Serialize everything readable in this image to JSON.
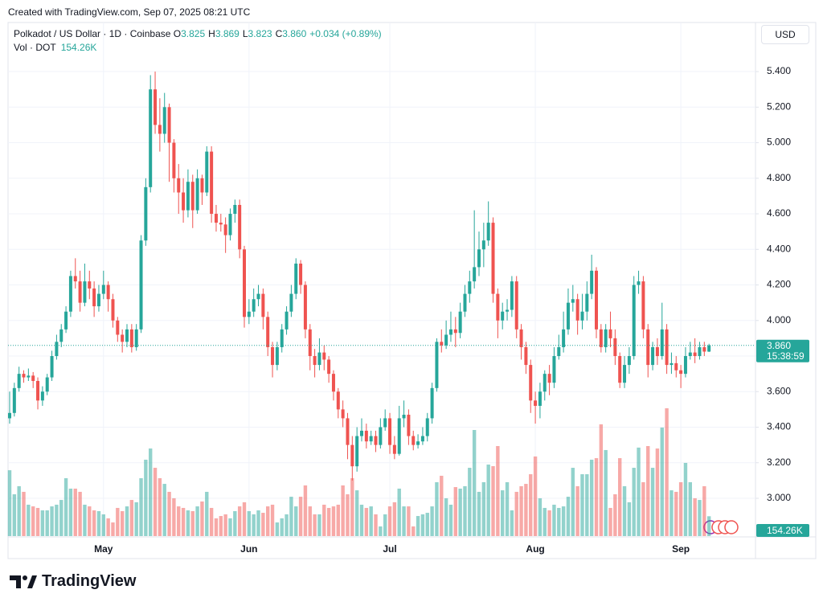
{
  "header": {
    "created": "Created with TradingView.com, Sep 07, 2025 08:21 UTC"
  },
  "chart_data": {
    "type": "candlestick",
    "title": "Polkadot / US Dollar · 1D · Coinbase",
    "ohlc_legend": [
      {
        "key": "O",
        "label": "3.825"
      },
      {
        "key": "H",
        "label": "3.869"
      },
      {
        "key": "L",
        "label": "3.823"
      },
      {
        "key": "C",
        "label": "3.860"
      }
    ],
    "change_label": "+0.034 (+0.89%)",
    "currency": "USD",
    "countdown": "15:38:59",
    "up_color": "#26a69a",
    "down_color": "#ef5350",
    "grid": true,
    "categories": [
      null,
      null,
      null,
      null,
      null,
      null,
      null,
      null,
      null,
      null,
      null,
      null,
      null,
      null,
      null,
      null,
      null,
      null,
      null,
      null,
      "May",
      null,
      null,
      null,
      null,
      null,
      null,
      null,
      null,
      null,
      null,
      null,
      null,
      null,
      null,
      null,
      null,
      null,
      null,
      null,
      null,
      null,
      null,
      null,
      null,
      null,
      null,
      null,
      null,
      null,
      null,
      "Jun",
      null,
      null,
      null,
      null,
      null,
      null,
      null,
      null,
      null,
      null,
      null,
      null,
      null,
      null,
      null,
      null,
      null,
      null,
      null,
      null,
      null,
      null,
      null,
      null,
      null,
      null,
      null,
      null,
      null,
      "Jul",
      null,
      null,
      null,
      null,
      null,
      null,
      null,
      null,
      null,
      null,
      null,
      null,
      null,
      null,
      null,
      null,
      null,
      null,
      null,
      null,
      null,
      null,
      null,
      null,
      null,
      null,
      null,
      null,
      null,
      null,
      "Aug",
      null,
      null,
      null,
      null,
      null,
      null,
      null,
      null,
      null,
      null,
      null,
      null,
      null,
      null,
      null,
      null,
      null,
      null,
      null,
      null,
      null,
      null,
      null,
      null,
      null,
      null,
      null,
      null,
      null,
      null,
      "Sep",
      null,
      null,
      null,
      null,
      null,
      null
    ],
    "open": [
      3.45,
      3.48,
      3.62,
      3.7,
      3.68,
      3.69,
      3.66,
      3.55,
      3.6,
      3.68,
      3.8,
      3.88,
      3.95,
      4.05,
      4.25,
      4.22,
      4.1,
      4.22,
      4.18,
      4.08,
      4.15,
      4.2,
      4.12,
      4.0,
      3.92,
      3.88,
      3.95,
      3.85,
      3.95,
      4.45,
      4.75,
      5.3,
      5.1,
      5.05,
      5.2,
      5.0,
      4.8,
      4.72,
      4.62,
      4.78,
      4.62,
      4.8,
      4.72,
      4.95,
      4.6,
      4.55,
      4.54,
      4.48,
      4.6,
      4.65,
      4.4,
      4.02,
      4.05,
      4.12,
      4.15,
      4.02,
      3.85,
      3.75,
      3.85,
      3.95,
      4.05,
      4.15,
      4.32,
      4.2,
      3.95,
      3.8,
      3.75,
      3.82,
      3.78,
      3.7,
      3.6,
      3.5,
      3.45,
      3.3,
      3.18,
      3.35,
      3.38,
      3.32,
      3.35,
      3.3,
      3.4,
      3.45,
      3.3,
      3.25,
      3.45,
      3.47,
      3.35,
      3.3,
      3.32,
      3.35,
      3.45,
      3.62,
      3.88,
      3.86,
      3.92,
      3.95,
      3.93,
      4.05,
      4.15,
      4.22,
      4.3,
      4.4,
      4.45,
      4.55,
      4.15,
      4.0,
      4.05,
      4.06,
      4.22,
      3.95,
      3.85,
      3.75,
      3.55,
      3.52,
      3.6,
      3.7,
      3.65,
      3.8,
      3.85,
      3.95,
      4.1,
      4.12,
      4.0,
      4.05,
      4.15,
      4.28,
      3.95,
      3.85,
      3.95,
      3.9,
      3.8,
      3.65,
      3.75,
      3.8,
      4.2,
      4.22,
      3.95,
      3.75,
      3.85,
      3.8,
      3.95,
      3.75,
      3.76,
      3.72,
      3.7,
      3.8,
      3.82,
      3.8,
      3.85,
      3.825
    ],
    "high": [
      3.6,
      3.65,
      3.74,
      3.72,
      3.73,
      3.71,
      3.68,
      3.63,
      3.7,
      3.83,
      3.92,
      3.98,
      4.08,
      4.28,
      4.35,
      4.28,
      4.32,
      4.28,
      4.22,
      4.2,
      4.28,
      4.22,
      4.15,
      4.02,
      3.95,
      3.98,
      3.98,
      3.98,
      4.48,
      4.8,
      5.38,
      5.4,
      5.25,
      5.28,
      5.22,
      5.02,
      4.88,
      4.8,
      4.85,
      4.82,
      4.85,
      4.82,
      4.98,
      4.98,
      4.65,
      4.6,
      4.58,
      4.63,
      4.68,
      4.68,
      4.42,
      4.12,
      4.18,
      4.2,
      4.18,
      4.05,
      3.88,
      3.88,
      3.98,
      4.08,
      4.2,
      4.35,
      4.34,
      4.22,
      3.98,
      3.84,
      3.9,
      3.86,
      3.8,
      3.72,
      3.62,
      3.55,
      3.48,
      3.35,
      3.4,
      3.45,
      3.42,
      3.38,
      3.38,
      3.45,
      3.5,
      3.48,
      3.35,
      3.52,
      3.55,
      3.5,
      3.38,
      3.36,
      3.4,
      3.48,
      3.65,
      3.9,
      3.95,
      4.0,
      4.05,
      4.02,
      4.1,
      4.2,
      4.28,
      4.62,
      4.5,
      4.55,
      4.67,
      4.58,
      4.18,
      4.1,
      4.12,
      4.25,
      4.25,
      3.98,
      3.88,
      3.78,
      3.6,
      3.65,
      3.72,
      3.75,
      3.85,
      3.92,
      4.05,
      4.18,
      4.2,
      4.15,
      4.15,
      4.22,
      4.37,
      4.3,
      3.98,
      3.98,
      4.05,
      3.95,
      3.82,
      3.8,
      3.85,
      4.25,
      4.28,
      4.25,
      3.98,
      3.88,
      3.9,
      4.1,
      3.98,
      3.82,
      3.8,
      3.75,
      3.85,
      3.88,
      3.9,
      3.88,
      3.88,
      3.869
    ],
    "low": [
      3.42,
      3.46,
      3.6,
      3.65,
      3.66,
      3.62,
      3.5,
      3.52,
      3.58,
      3.66,
      3.78,
      3.85,
      3.93,
      4.02,
      4.18,
      4.05,
      4.08,
      4.12,
      4.02,
      4.05,
      4.12,
      4.05,
      3.96,
      3.88,
      3.82,
      3.85,
      3.82,
      3.83,
      3.93,
      4.42,
      4.72,
      5.05,
      4.95,
      5.0,
      4.78,
      4.72,
      4.6,
      4.55,
      4.58,
      4.52,
      4.6,
      4.65,
      4.7,
      4.55,
      4.5,
      4.5,
      4.38,
      4.45,
      4.55,
      4.35,
      3.96,
      3.98,
      4.02,
      4.08,
      3.95,
      3.8,
      3.68,
      3.72,
      3.82,
      3.92,
      4.02,
      4.12,
      4.15,
      3.9,
      3.72,
      3.68,
      3.72,
      3.72,
      3.65,
      3.55,
      3.45,
      3.4,
      3.22,
      3.1,
      3.15,
      3.32,
      3.28,
      3.3,
      3.26,
      3.28,
      3.38,
      3.25,
      3.22,
      3.24,
      3.4,
      3.3,
      3.27,
      3.28,
      3.3,
      3.32,
      3.42,
      3.6,
      3.82,
      3.84,
      3.88,
      3.85,
      3.9,
      4.02,
      4.1,
      4.18,
      4.25,
      4.3,
      4.42,
      4.1,
      3.9,
      3.95,
      4.0,
      4.02,
      3.9,
      3.78,
      3.7,
      3.48,
      3.42,
      3.45,
      3.55,
      3.58,
      3.62,
      3.78,
      3.82,
      3.92,
      4.05,
      3.92,
      3.95,
      4.0,
      4.12,
      3.9,
      3.82,
      3.82,
      3.85,
      3.75,
      3.62,
      3.62,
      3.7,
      3.78,
      4.15,
      3.9,
      3.68,
      3.72,
      3.75,
      3.78,
      3.7,
      3.7,
      3.68,
      3.62,
      3.68,
      3.78,
      3.76,
      3.78,
      3.8,
      3.823
    ],
    "close": [
      3.48,
      3.62,
      3.7,
      3.68,
      3.69,
      3.66,
      3.55,
      3.6,
      3.68,
      3.8,
      3.88,
      3.95,
      4.05,
      4.25,
      4.22,
      4.1,
      4.22,
      4.18,
      4.08,
      4.15,
      4.2,
      4.12,
      4.0,
      3.92,
      3.88,
      3.95,
      3.85,
      3.95,
      4.45,
      4.75,
      5.3,
      5.1,
      5.05,
      5.2,
      5.0,
      4.8,
      4.72,
      4.62,
      4.78,
      4.62,
      4.8,
      4.72,
      4.95,
      4.6,
      4.55,
      4.54,
      4.48,
      4.6,
      4.65,
      4.4,
      4.02,
      4.05,
      4.12,
      4.15,
      4.02,
      3.85,
      3.75,
      3.85,
      3.95,
      4.05,
      4.15,
      4.32,
      4.2,
      3.95,
      3.8,
      3.75,
      3.82,
      3.78,
      3.7,
      3.6,
      3.5,
      3.45,
      3.3,
      3.18,
      3.35,
      3.38,
      3.32,
      3.35,
      3.3,
      3.4,
      3.45,
      3.3,
      3.25,
      3.45,
      3.47,
      3.35,
      3.3,
      3.32,
      3.35,
      3.45,
      3.62,
      3.88,
      3.86,
      3.92,
      3.95,
      3.93,
      4.05,
      4.15,
      4.22,
      4.3,
      4.4,
      4.45,
      4.55,
      4.15,
      4.0,
      4.05,
      4.06,
      4.22,
      3.95,
      3.85,
      3.75,
      3.55,
      3.52,
      3.6,
      3.7,
      3.65,
      3.8,
      3.85,
      3.95,
      4.1,
      4.12,
      4.0,
      4.05,
      4.15,
      4.28,
      3.95,
      3.85,
      3.95,
      3.9,
      3.8,
      3.65,
      3.75,
      3.8,
      4.2,
      4.22,
      3.95,
      3.75,
      3.85,
      3.8,
      3.95,
      3.75,
      3.76,
      3.72,
      3.7,
      3.8,
      3.82,
      3.8,
      3.85,
      3.825,
      3.86
    ],
    "volume": {
      "name": "Vol · DOT",
      "last_label": "154.26K",
      "values": [
        512000,
        325000,
        388000,
        344000,
        244000,
        231000,
        219000,
        200000,
        200000,
        231000,
        244000,
        281000,
        450000,
        369000,
        369000,
        344000,
        244000,
        231000,
        200000,
        194000,
        169000,
        138000,
        106000,
        219000,
        194000,
        231000,
        281000,
        263000,
        450000,
        594000,
        681000,
        531000,
        450000,
        406000,
        344000,
        294000,
        231000,
        219000,
        200000,
        194000,
        231000,
        269000,
        344000,
        219000,
        138000,
        156000,
        169000,
        138000,
        194000,
        231000,
        263000,
        194000,
        169000,
        200000,
        181000,
        231000,
        244000,
        106000,
        138000,
        169000,
        306000,
        231000,
        306000,
        394000,
        231000,
        169000,
        169000,
        244000,
        219000,
        231000,
        244000,
        394000,
        325000,
        450000,
        356000,
        244000,
        219000,
        231000,
        169000,
        75000,
        169000,
        231000,
        263000,
        369000,
        231000,
        231000,
        75000,
        156000,
        169000,
        181000,
        231000,
        419000,
        469000,
        294000,
        244000,
        381000,
        369000,
        388000,
        531000,
        825000,
        344000,
        419000,
        556000,
        544000,
        700000,
        356000,
        419000,
        200000,
        344000,
        388000,
        406000,
        481000,
        619000,
        294000,
        219000,
        200000,
        244000,
        219000,
        231000,
        306000,
        531000,
        388000,
        481000,
        481000,
        594000,
        606000,
        869000,
        669000,
        219000,
        325000,
        606000,
        388000,
        263000,
        531000,
        688000,
        419000,
        700000,
        531000,
        681000,
        844000,
        994000,
        356000,
        344000,
        419000,
        569000,
        419000,
        294000,
        281000,
        388000,
        154260
      ]
    },
    "ylim": [
      2.783,
      5.676
    ],
    "yticks": [
      {
        "value": 3,
        "label": "3.000"
      },
      {
        "value": 3.2,
        "label": "3.200"
      },
      {
        "value": 3.4,
        "label": "3.400"
      },
      {
        "value": 3.6,
        "label": "3.600"
      },
      {
        "value": 3.8,
        "label": "3.800"
      },
      {
        "value": 4,
        "label": "4.000"
      },
      {
        "value": 4.2,
        "label": "4.200"
      },
      {
        "value": 4.4,
        "label": "4.400"
      },
      {
        "value": 4.6,
        "label": "4.600"
      },
      {
        "value": 4.8,
        "label": "4.800"
      },
      {
        "value": 5,
        "label": "5.000"
      },
      {
        "value": 5.2,
        "label": "5.200"
      },
      {
        "value": 5.4,
        "label": "5.400"
      }
    ]
  },
  "footer": {
    "logo": "TradingView"
  }
}
